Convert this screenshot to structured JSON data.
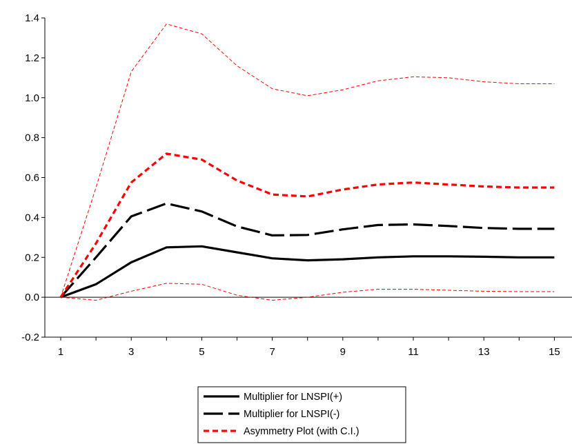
{
  "chart_data": {
    "type": "line",
    "title": "",
    "xlabel": "",
    "ylabel": "",
    "x": [
      1,
      2,
      3,
      4,
      5,
      6,
      7,
      8,
      9,
      10,
      11,
      12,
      13,
      14,
      15
    ],
    "xlim": [
      0.55,
      15.5
    ],
    "ylim": [
      -0.2,
      1.4
    ],
    "x_tick_labels": [
      "1",
      "3",
      "5",
      "7",
      "9",
      "11",
      "13",
      "15"
    ],
    "y_tick_labels": [
      "-0.2",
      "0.0",
      "0.2",
      "0.4",
      "0.6",
      "0.8",
      "1.0",
      "1.2",
      "1.4"
    ],
    "grid": false,
    "legend_position": "bottom-center",
    "series": [
      {
        "name": "Multiplier for LNSPI(+)",
        "legend": true,
        "color": "#000000",
        "style": "solid-thick",
        "values": [
          0.0,
          0.065,
          0.175,
          0.25,
          0.255,
          0.225,
          0.195,
          0.185,
          0.19,
          0.2,
          0.205,
          0.205,
          0.203,
          0.2,
          0.2
        ]
      },
      {
        "name": "Multiplier for LNSPI(-)",
        "legend": true,
        "color": "#000000",
        "style": "long-dash-thick",
        "values": [
          0.0,
          0.2,
          0.405,
          0.47,
          0.43,
          0.355,
          0.31,
          0.312,
          0.34,
          0.362,
          0.365,
          0.357,
          0.347,
          0.343,
          0.343
        ]
      },
      {
        "name": "Asymmetry Plot (with C.I.)",
        "legend": true,
        "color": "#ff0000",
        "style": "dash-thick",
        "values": [
          0.0,
          0.27,
          0.575,
          0.72,
          0.69,
          0.585,
          0.515,
          0.505,
          0.54,
          0.565,
          0.575,
          0.565,
          0.555,
          0.55,
          0.55
        ]
      },
      {
        "name": "",
        "legend": false,
        "color": "#ff0000",
        "style": "dash-thin",
        "values": [
          0.0,
          0.55,
          1.13,
          1.37,
          1.32,
          1.16,
          1.045,
          1.01,
          1.04,
          1.085,
          1.105,
          1.1,
          1.08,
          1.07,
          1.07
        ]
      },
      {
        "name": "",
        "legend": false,
        "color": "#ff0000",
        "style": "dash-thin",
        "values": [
          0.0,
          -0.015,
          0.03,
          0.07,
          0.065,
          0.01,
          -0.015,
          0.0,
          0.025,
          0.04,
          0.04,
          0.035,
          0.03,
          0.028,
          0.028
        ]
      }
    ]
  }
}
